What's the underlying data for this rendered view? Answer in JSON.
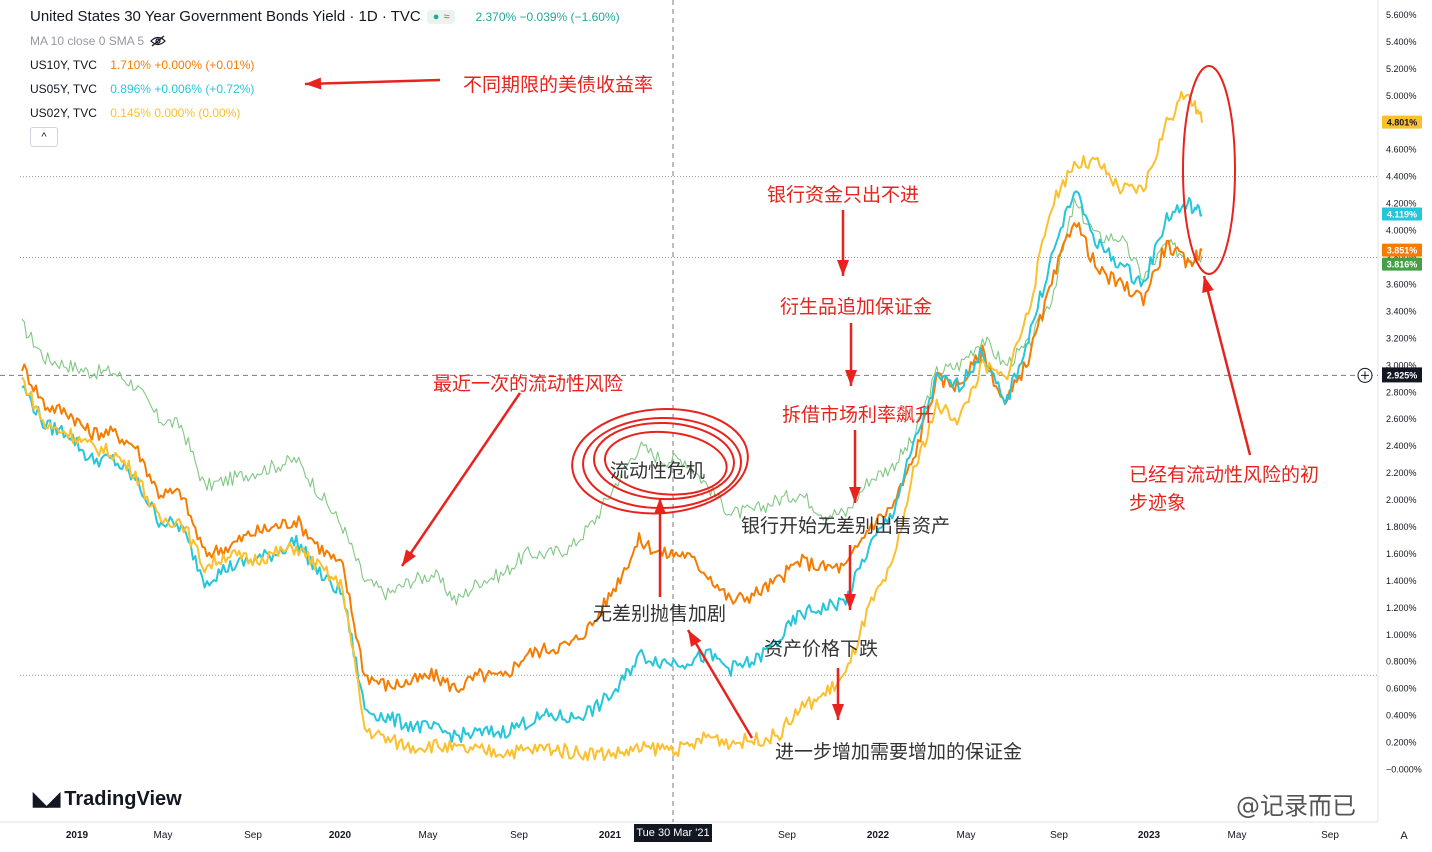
{
  "header": {
    "title": "United States 30 Year Government Bonds Yield · 1D · TVC",
    "pill_left": "●",
    "pill_right": "≈",
    "values": "2.370%  −0.039%  (−1.60%)",
    "ma_label": "MA 10 close 0 SMA 5",
    "collapse_icon": "^"
  },
  "legend": [
    {
      "name": "US10Y, TVC",
      "values": "1.710%  +0.000%  (+0.01%)",
      "color": "#f57c00"
    },
    {
      "name": "US05Y, TVC",
      "values": "0.896%  +0.006%  (+0.72%)",
      "color": "#26c6da"
    },
    {
      "name": "US02Y, TVC",
      "values": "0.145%  0.000%  (0.00%)",
      "color": "#fbc02d"
    }
  ],
  "logo": "TradingView",
  "watermark": "@记录而已",
  "crosshair_date": "Tue 30 Mar '21",
  "annotations": {
    "yields": "不同期限的美债收益率",
    "last_risk": "最近一次的流动性风险",
    "crisis": "流动性危机",
    "sell_more": "无差别抛售加剧",
    "bank_cash": "银行资金只出不进",
    "derivatives": "衍生品追加保证金",
    "repo": "拆借市场利率飙升",
    "bank_sell": "银行开始无差别出售资产",
    "price_fall": "资产价格下跌",
    "more_margin": "进一步增加需要增加的保证金",
    "signs_1": "已经有流动性风险的初",
    "signs_2": "步迹象"
  },
  "chart_data": {
    "type": "line",
    "title": "United States 30 Year Government Bonds Yield · 1D · TVC",
    "xlabel": "",
    "ylabel": "",
    "ylim": [
      -0.1,
      5.7
    ],
    "x_ticks": [
      "2019",
      "May",
      "Sep",
      "2020",
      "May",
      "Sep",
      "2021",
      "May",
      "Sep",
      "2022",
      "May",
      "Sep",
      "2023",
      "May",
      "Sep"
    ],
    "y_ticks": [
      "5.600%",
      "5.400%",
      "5.200%",
      "5.000%",
      "4.800%",
      "4.600%",
      "4.400%",
      "4.200%",
      "4.000%",
      "3.800%",
      "3.600%",
      "3.400%",
      "3.200%",
      "3.000%",
      "2.800%",
      "2.600%",
      "2.400%",
      "2.200%",
      "2.000%",
      "1.800%",
      "1.600%",
      "1.400%",
      "1.200%",
      "1.000%",
      "0.800%",
      "0.600%",
      "0.400%",
      "0.200%",
      "−0.000%"
    ],
    "y_tick_values": [
      5.6,
      5.4,
      5.2,
      5.0,
      4.8,
      4.6,
      4.4,
      4.2,
      4.0,
      3.8,
      3.6,
      3.4,
      3.2,
      3.0,
      2.8,
      2.6,
      2.4,
      2.2,
      2.0,
      1.8,
      1.6,
      1.4,
      1.2,
      1.0,
      0.8,
      0.6,
      0.4,
      0.2,
      0.0
    ],
    "crosshair_value": 2.925,
    "crosshair_label": "2.925%",
    "grid": false,
    "legend_position": "top-left",
    "series": [
      {
        "name": "US30Y",
        "color": "#81c784",
        "last_label": "3.816%",
        "label_color": "#43a047",
        "last": 3.816,
        "x": [
          "2018-12-01",
          "2019-01-01",
          "2019-02-01",
          "2019-03-01",
          "2019-04-01",
          "2019-05-01",
          "2019-06-01",
          "2019-07-01",
          "2019-08-01",
          "2019-09-01",
          "2019-10-01",
          "2019-11-01",
          "2019-12-01",
          "2020-01-01",
          "2020-02-01",
          "2020-03-01",
          "2020-04-01",
          "2020-05-01",
          "2020-06-01",
          "2020-07-01",
          "2020-08-01",
          "2020-09-01",
          "2020-10-01",
          "2020-11-01",
          "2020-12-01",
          "2021-01-01",
          "2021-02-01",
          "2021-03-01",
          "2021-04-01",
          "2021-05-01",
          "2021-06-01",
          "2021-07-01",
          "2021-08-01",
          "2021-09-01",
          "2021-10-01",
          "2021-11-01",
          "2021-12-01",
          "2022-01-01",
          "2022-02-01",
          "2022-03-01",
          "2022-04-01",
          "2022-05-01",
          "2022-06-01",
          "2022-07-01",
          "2022-08-01",
          "2022-09-01",
          "2022-10-01",
          "2022-11-01",
          "2022-12-01",
          "2023-01-01",
          "2023-02-01",
          "2023-03-01",
          "2023-03-20"
        ],
        "values": [
          3.3,
          3.05,
          3.0,
          2.95,
          2.95,
          2.85,
          2.6,
          2.55,
          2.1,
          2.15,
          2.2,
          2.25,
          2.3,
          2.05,
          1.8,
          1.4,
          1.3,
          1.4,
          1.45,
          1.25,
          1.4,
          1.45,
          1.6,
          1.6,
          1.65,
          1.85,
          2.15,
          2.4,
          2.3,
          2.3,
          2.1,
          1.9,
          1.92,
          2.0,
          2.05,
          1.9,
          1.9,
          2.15,
          2.25,
          2.45,
          2.95,
          3.0,
          3.2,
          3.0,
          3.15,
          3.5,
          4.2,
          3.95,
          3.95,
          3.65,
          3.9,
          3.8,
          3.816
        ]
      },
      {
        "name": "US10Y",
        "color": "#f57c00",
        "last_label": "3.851%",
        "label_color": "#f57c00",
        "last": 3.851,
        "x": [
          "2018-12-01",
          "2019-01-01",
          "2019-02-01",
          "2019-03-01",
          "2019-04-01",
          "2019-05-01",
          "2019-06-01",
          "2019-07-01",
          "2019-08-01",
          "2019-09-01",
          "2019-10-01",
          "2019-11-01",
          "2019-12-01",
          "2020-01-01",
          "2020-02-01",
          "2020-03-01",
          "2020-04-01",
          "2020-05-01",
          "2020-06-01",
          "2020-07-01",
          "2020-08-01",
          "2020-09-01",
          "2020-10-01",
          "2020-11-01",
          "2020-12-01",
          "2021-01-01",
          "2021-02-01",
          "2021-03-01",
          "2021-04-01",
          "2021-05-01",
          "2021-06-01",
          "2021-07-01",
          "2021-08-01",
          "2021-09-01",
          "2021-10-01",
          "2021-11-01",
          "2021-12-01",
          "2022-01-01",
          "2022-02-01",
          "2022-03-01",
          "2022-04-01",
          "2022-05-01",
          "2022-06-01",
          "2022-07-01",
          "2022-08-01",
          "2022-09-01",
          "2022-10-01",
          "2022-11-01",
          "2022-12-01",
          "2023-01-01",
          "2023-02-01",
          "2023-03-01",
          "2023-03-20"
        ],
        "values": [
          3.0,
          2.7,
          2.65,
          2.5,
          2.5,
          2.4,
          2.05,
          2.05,
          1.6,
          1.65,
          1.75,
          1.8,
          1.85,
          1.65,
          1.5,
          0.7,
          0.62,
          0.65,
          0.7,
          0.6,
          0.7,
          0.68,
          0.85,
          0.9,
          0.93,
          1.1,
          1.4,
          1.7,
          1.6,
          1.6,
          1.45,
          1.25,
          1.3,
          1.4,
          1.55,
          1.5,
          1.5,
          1.8,
          1.95,
          2.3,
          2.9,
          2.85,
          3.1,
          2.7,
          3.05,
          3.6,
          4.1,
          3.7,
          3.6,
          3.5,
          3.9,
          3.75,
          3.851
        ]
      },
      {
        "name": "US05Y",
        "color": "#26c6da",
        "last_label": "4.119%",
        "label_color": "#26c6da",
        "last": 4.119,
        "x": [
          "2018-12-01",
          "2019-01-01",
          "2019-02-01",
          "2019-03-01",
          "2019-04-01",
          "2019-05-01",
          "2019-06-01",
          "2019-07-01",
          "2019-08-01",
          "2019-09-01",
          "2019-10-01",
          "2019-11-01",
          "2019-12-01",
          "2020-01-01",
          "2020-02-01",
          "2020-03-01",
          "2020-04-01",
          "2020-05-01",
          "2020-06-01",
          "2020-07-01",
          "2020-08-01",
          "2020-09-01",
          "2020-10-01",
          "2020-11-01",
          "2020-12-01",
          "2021-01-01",
          "2021-02-01",
          "2021-03-01",
          "2021-04-01",
          "2021-05-01",
          "2021-06-01",
          "2021-07-01",
          "2021-08-01",
          "2021-09-01",
          "2021-10-01",
          "2021-11-01",
          "2021-12-01",
          "2022-01-01",
          "2022-02-01",
          "2022-03-01",
          "2022-04-01",
          "2022-05-01",
          "2022-06-01",
          "2022-07-01",
          "2022-08-01",
          "2022-09-01",
          "2022-10-01",
          "2022-11-01",
          "2022-12-01",
          "2023-01-01",
          "2023-02-01",
          "2023-03-01",
          "2023-03-20"
        ],
        "values": [
          2.85,
          2.55,
          2.5,
          2.3,
          2.3,
          2.15,
          1.85,
          1.8,
          1.4,
          1.5,
          1.55,
          1.6,
          1.7,
          1.45,
          1.3,
          0.45,
          0.38,
          0.33,
          0.3,
          0.25,
          0.27,
          0.28,
          0.35,
          0.4,
          0.38,
          0.45,
          0.6,
          0.85,
          0.8,
          0.8,
          0.85,
          0.75,
          0.8,
          0.95,
          1.15,
          1.2,
          1.25,
          1.65,
          1.9,
          2.4,
          2.9,
          2.85,
          3.1,
          2.7,
          3.2,
          3.8,
          4.3,
          3.9,
          3.75,
          3.6,
          4.1,
          4.2,
          4.119
        ]
      },
      {
        "name": "US02Y",
        "color": "#fbc02d",
        "last_label": "4.801%",
        "label_color": "#fbc02d",
        "last": 4.801,
        "x": [
          "2018-12-01",
          "2019-01-01",
          "2019-02-01",
          "2019-03-01",
          "2019-04-01",
          "2019-05-01",
          "2019-06-01",
          "2019-07-01",
          "2019-08-01",
          "2019-09-01",
          "2019-10-01",
          "2019-11-01",
          "2019-12-01",
          "2020-01-01",
          "2020-02-01",
          "2020-03-01",
          "2020-04-01",
          "2020-05-01",
          "2020-06-01",
          "2020-07-01",
          "2020-08-01",
          "2020-09-01",
          "2020-10-01",
          "2020-11-01",
          "2020-12-01",
          "2021-01-01",
          "2021-02-01",
          "2021-03-01",
          "2021-04-01",
          "2021-05-01",
          "2021-06-01",
          "2021-07-01",
          "2021-08-01",
          "2021-09-01",
          "2021-10-01",
          "2021-11-01",
          "2021-12-01",
          "2022-01-01",
          "2022-02-01",
          "2022-03-01",
          "2022-04-01",
          "2022-05-01",
          "2022-06-01",
          "2022-07-01",
          "2022-08-01",
          "2022-09-01",
          "2022-10-01",
          "2022-11-01",
          "2022-12-01",
          "2023-01-01",
          "2023-02-01",
          "2023-03-01",
          "2023-03-20"
        ],
        "values": [
          2.9,
          2.55,
          2.5,
          2.4,
          2.35,
          2.2,
          1.85,
          1.85,
          1.5,
          1.6,
          1.55,
          1.6,
          1.65,
          1.5,
          1.35,
          0.3,
          0.22,
          0.17,
          0.18,
          0.15,
          0.14,
          0.13,
          0.14,
          0.16,
          0.13,
          0.12,
          0.12,
          0.15,
          0.16,
          0.15,
          0.25,
          0.2,
          0.22,
          0.25,
          0.45,
          0.55,
          0.7,
          1.2,
          1.5,
          2.2,
          2.7,
          2.6,
          3.0,
          2.9,
          3.4,
          4.2,
          4.5,
          4.5,
          4.3,
          4.3,
          4.8,
          5.05,
          4.801
        ]
      }
    ]
  }
}
